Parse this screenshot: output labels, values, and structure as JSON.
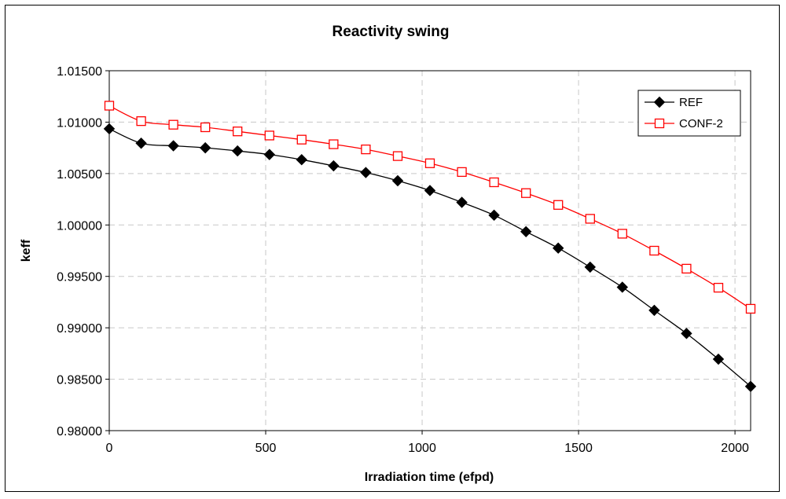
{
  "chart_data": {
    "type": "line",
    "title": "Reactivity swing",
    "xlabel": "Irradiation time (efpd)",
    "ylabel": "keff",
    "xlim": [
      0,
      2050
    ],
    "ylim": [
      0.98,
      1.015
    ],
    "x_ticks": [
      0,
      500,
      1000,
      1500,
      2000
    ],
    "x_tick_labels": [
      "0",
      "500",
      "1000",
      "1500",
      "2000"
    ],
    "y_ticks": [
      0.98,
      0.985,
      0.99,
      0.995,
      1.0,
      1.005,
      1.01,
      1.015
    ],
    "y_tick_labels": [
      "0.98000",
      "0.98500",
      "0.99000",
      "0.99500",
      "1.00000",
      "1.00500",
      "1.01000",
      "1.01500"
    ],
    "grid": "dashed",
    "legend_position": "top-right",
    "x": [
      0,
      102,
      205,
      307,
      410,
      512,
      615,
      717,
      820,
      922,
      1025,
      1127,
      1230,
      1332,
      1435,
      1537,
      1640,
      1742,
      1845,
      1947,
      2050
    ],
    "series": [
      {
        "name": "REF",
        "color": "#000000",
        "marker": "filled-diamond",
        "values": [
          1.00935,
          1.00795,
          1.0077,
          1.0075,
          1.0072,
          1.00685,
          1.00635,
          1.00575,
          1.0051,
          1.0043,
          1.00335,
          1.0022,
          1.00095,
          0.99935,
          0.99775,
          0.9959,
          0.99395,
          0.9917,
          0.98945,
          0.98695,
          0.9843
        ]
      },
      {
        "name": "CONF-2",
        "color": "#ff0000",
        "marker": "open-square",
        "values": [
          1.0116,
          1.0101,
          1.00975,
          1.0095,
          1.0091,
          1.0087,
          1.0083,
          1.00785,
          1.00735,
          1.0067,
          1.006,
          1.00515,
          1.00415,
          1.0031,
          1.00195,
          1.0006,
          0.99915,
          0.9975,
          0.99575,
          0.9939,
          0.99185
        ]
      }
    ]
  }
}
